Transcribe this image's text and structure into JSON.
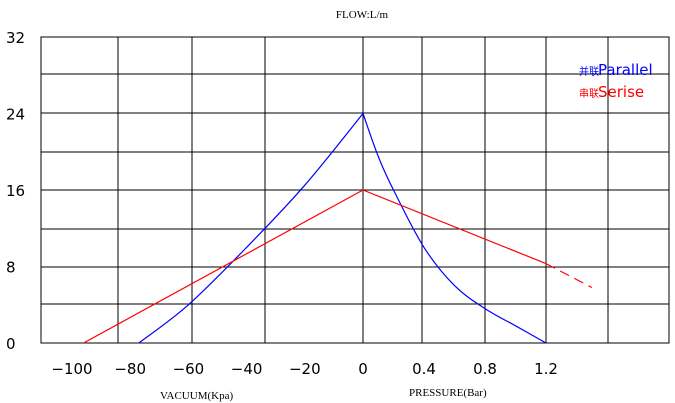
{
  "chart_data": {
    "type": "line",
    "title": "FLOW:L/m",
    "y_ticks": [
      "0",
      "8",
      "16",
      "24",
      "32"
    ],
    "ylim": [
      0,
      32
    ],
    "vacuum_axis": {
      "label": "VACUUM(Kpa)",
      "ticks": [
        "−100",
        "−80",
        "−60",
        "−40",
        "−20",
        "0"
      ],
      "range": [
        -100,
        0
      ]
    },
    "pressure_axis": {
      "label": "PRESSURE(Bar)",
      "ticks": [
        "0.4",
        "0.8",
        "1.2"
      ],
      "range": [
        0,
        1.2
      ]
    },
    "grid": true,
    "legend_position": "top-right",
    "series": [
      {
        "name": "Parallel",
        "legend_glyph": "并联",
        "color": "#0000ff",
        "vacuum_points": [
          [
            -77,
            0
          ],
          [
            -60,
            4
          ],
          [
            -40,
            10
          ],
          [
            -20,
            16.5
          ],
          [
            0,
            24
          ]
        ],
        "pressure_points": [
          [
            0,
            24
          ],
          [
            0.1,
            19.5
          ],
          [
            0.2,
            16
          ],
          [
            0.4,
            10
          ],
          [
            0.6,
            6
          ],
          [
            0.8,
            3.6
          ],
          [
            1.0,
            1.8
          ],
          [
            1.2,
            0
          ]
        ]
      },
      {
        "name": "Serise",
        "legend_glyph": "串联",
        "color": "#ff0000",
        "vacuum_points": [
          [
            -96,
            0
          ],
          [
            0,
            16
          ]
        ],
        "pressure_points": [
          [
            0,
            16
          ],
          [
            1.2,
            8.3
          ]
        ],
        "dashed_extension": [
          [
            1.2,
            8.3
          ],
          [
            1.5,
            5.8
          ]
        ]
      }
    ]
  }
}
